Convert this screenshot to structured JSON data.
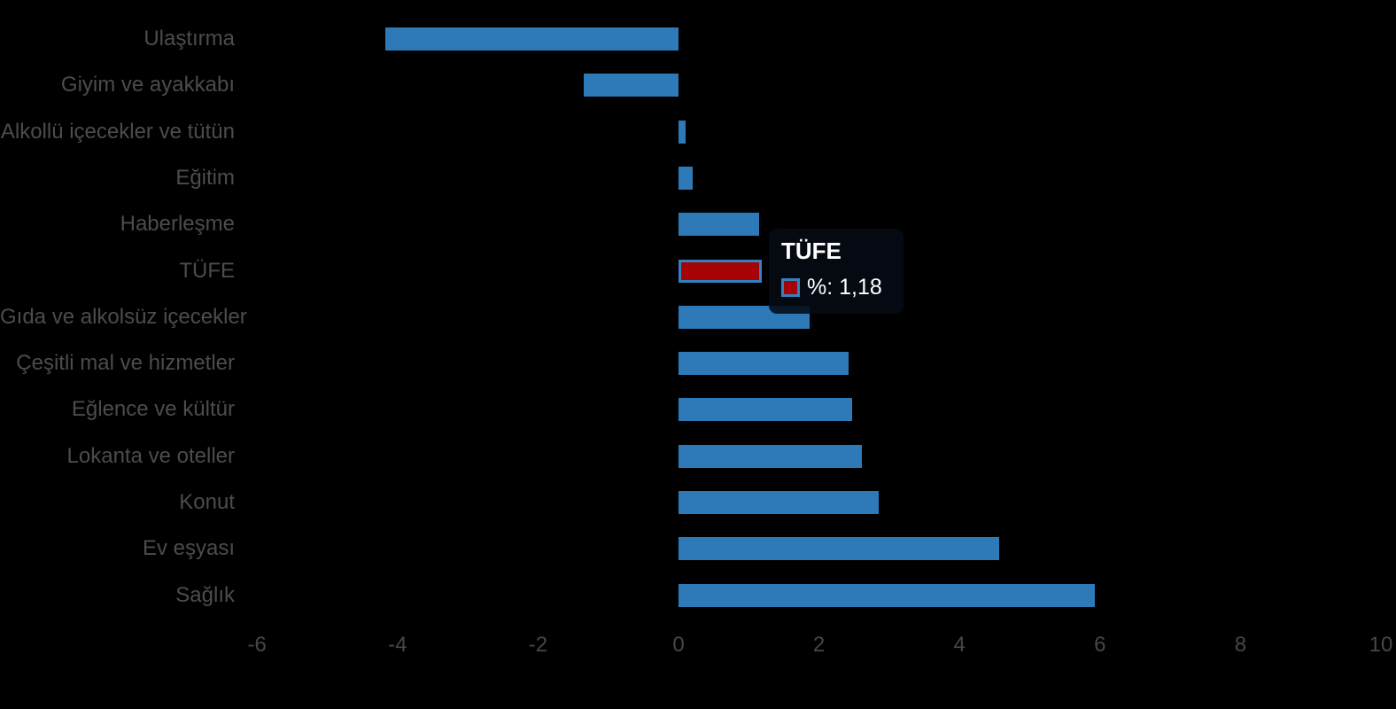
{
  "chart_data": {
    "type": "bar",
    "orientation": "horizontal",
    "categories": [
      "Ulaştırma",
      "Giyim ve ayakkabı",
      "Alkollü içecekler ve tütün",
      "Eğitim",
      "Haberleşme",
      "TÜFE",
      "Gıda ve alkolsüz içecekler",
      "Çeşitli mal ve hizmetler",
      "Eğlence ve kültür",
      "Lokanta ve oteller",
      "Konut",
      "Ev eşyası",
      "Sağlık"
    ],
    "values": [
      -4.18,
      -1.35,
      0.1,
      0.2,
      1.15,
      1.18,
      1.87,
      2.42,
      2.47,
      2.61,
      2.85,
      4.57,
      5.93
    ],
    "highlighted_category": "TÜFE",
    "highlighted_value": 1.18,
    "title": "",
    "xlabel": "",
    "ylabel": "",
    "xlim": [
      -6,
      10
    ],
    "x_ticks": [
      -6,
      -4,
      -2,
      0,
      2,
      4,
      6,
      8,
      10
    ],
    "grid": false,
    "legend_position": "none",
    "colors": {
      "bar": "#2E79B7",
      "highlight_bar": "#A50306",
      "highlight_border": "#3580BE",
      "label_text": "#4c4c4c",
      "tick_text": "#474747",
      "tooltip_text": "#ffffff",
      "background": "#000000"
    }
  },
  "tooltip": {
    "title": "TÜFE",
    "value_label": "%: 1,18"
  }
}
